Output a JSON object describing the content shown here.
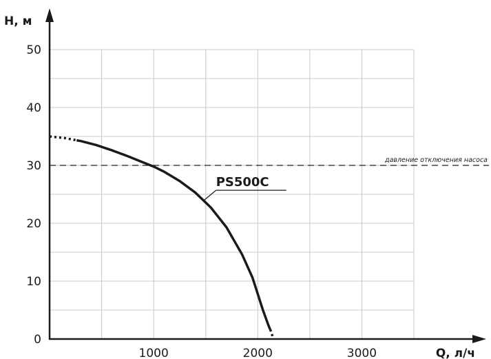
{
  "chart_data": {
    "type": "line",
    "xlabel": "Q, л/ч",
    "ylabel": "H, м",
    "xlim": [
      0,
      3600
    ],
    "ylim": [
      0,
      50
    ],
    "x_ticks": [
      1000,
      2000,
      3000
    ],
    "x_tick_labels": [
      "1000",
      "2000",
      "3000"
    ],
    "x_grid_step": 500,
    "y_ticks": [
      0,
      10,
      20,
      30,
      40,
      50
    ],
    "y_tick_labels": [
      "0",
      "10",
      "20",
      "30",
      "40",
      "50"
    ],
    "y_grid_step": 5,
    "grid": true,
    "series": [
      {
        "name": "PS500C",
        "color": "#1a1a1a",
        "x": [
          0,
          150,
          300,
          450,
          600,
          750,
          900,
          1000,
          1100,
          1250,
          1400,
          1550,
          1700,
          1850,
          1950,
          2050,
          2100,
          2130,
          2150
        ],
        "y": [
          35.0,
          34.7,
          34.2,
          33.5,
          32.6,
          31.6,
          30.5,
          29.8,
          28.9,
          27.3,
          25.3,
          22.7,
          19.3,
          14.6,
          10.6,
          5.0,
          2.5,
          1.2,
          0
        ],
        "dotted_start_x": [
          0,
          260
        ],
        "dotted_end_x": [
          2120,
          2150
        ]
      }
    ],
    "annotations": [
      {
        "type": "hline",
        "y": 30,
        "style": "dashed",
        "label": "давление отключения насоса"
      },
      {
        "type": "series-label",
        "text": "PS500C",
        "at_x": 1480,
        "at_y": 24.5
      }
    ]
  }
}
